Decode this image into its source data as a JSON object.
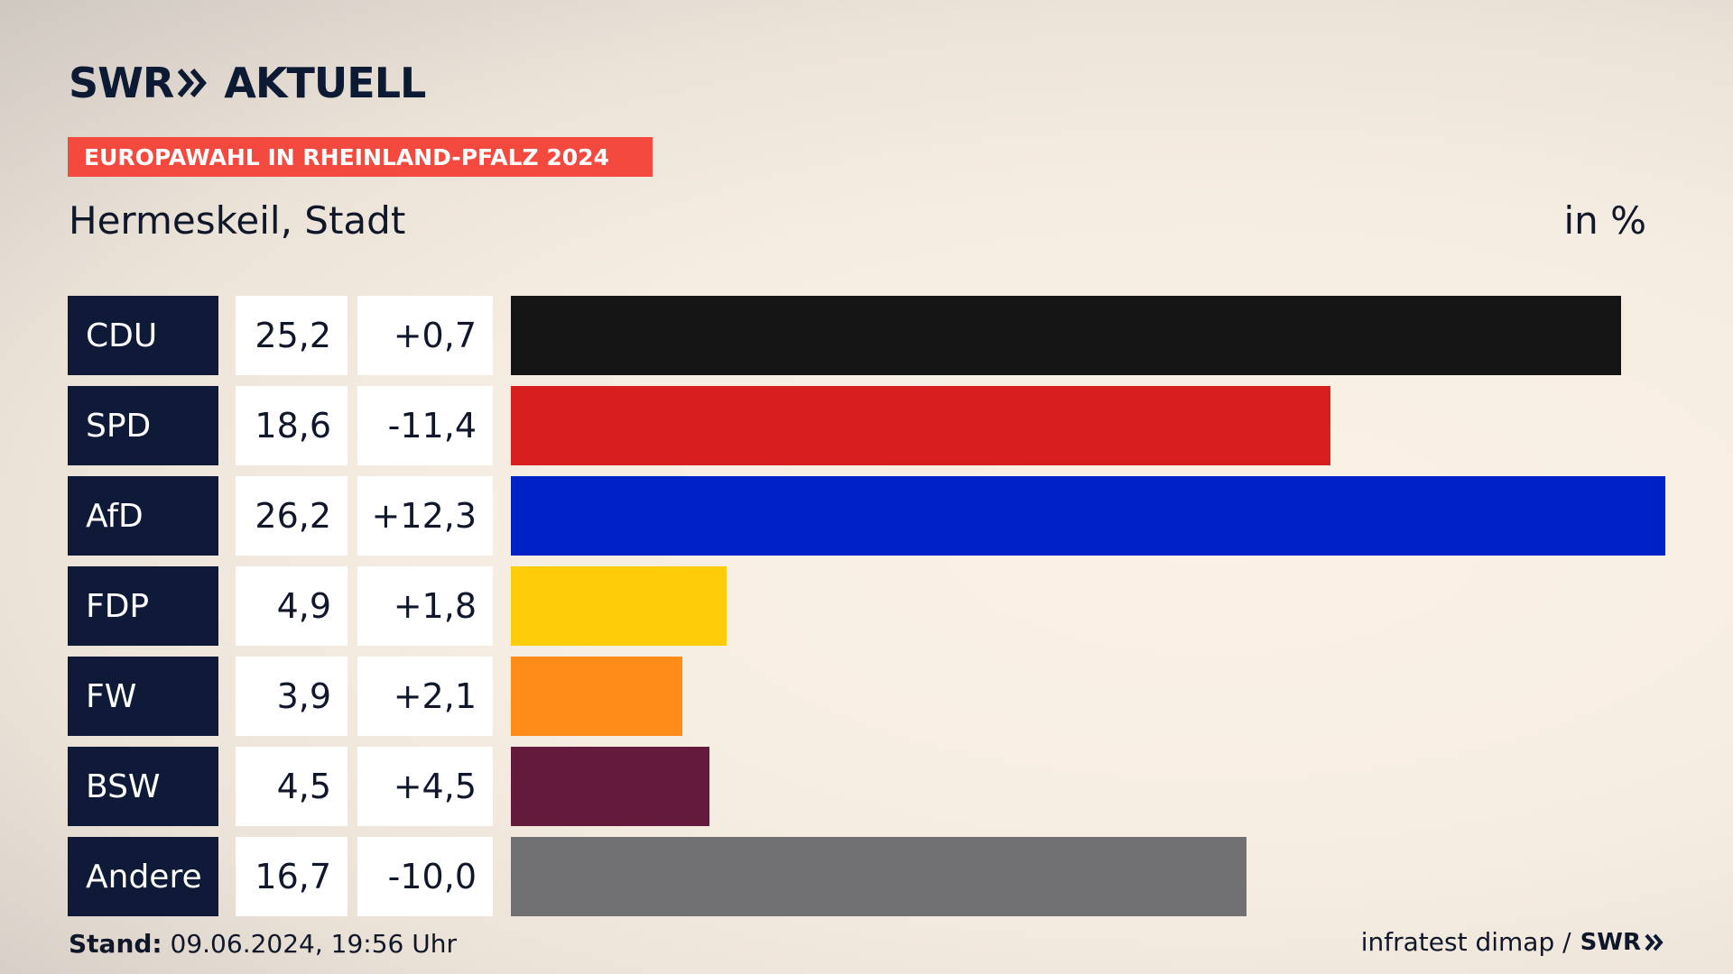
{
  "brand": {
    "logo_swr": "SWR",
    "logo_aktuell": "AKTUELL",
    "chevron_icon": "double-chevron-right-icon"
  },
  "header": {
    "badge": "EUROPAWAHL IN RHEINLAND-PFALZ 2024",
    "subtitle": "Hermeskeil, Stadt",
    "unit": "in %",
    "badge_color": "#f4493f"
  },
  "chart_data": {
    "type": "bar",
    "orientation": "horizontal",
    "categories": [
      "CDU",
      "SPD",
      "AfD",
      "FDP",
      "FW",
      "BSW",
      "Andere"
    ],
    "values": [
      25.2,
      18.6,
      26.2,
      4.9,
      3.9,
      4.5,
      16.7
    ],
    "value_labels": [
      "25,2",
      "18,6",
      "26,2",
      "4,9",
      "3,9",
      "4,5",
      "16,7"
    ],
    "changes": [
      "+0,7",
      "-11,4",
      "+12,3",
      "+1,8",
      "+2,1",
      "+4,5",
      "-10,0"
    ],
    "colors": [
      "#141414",
      "#d71f1f",
      "#0021c7",
      "#ffcc0a",
      "#ff8c19",
      "#641a3c",
      "#717173"
    ],
    "xlim": [
      0,
      26.2
    ]
  },
  "footer": {
    "stand_label": "Stand:",
    "stand_value": "09.06.2024, 19:56 Uhr",
    "source": "infratest dimap /",
    "source_logo": "SWR"
  }
}
